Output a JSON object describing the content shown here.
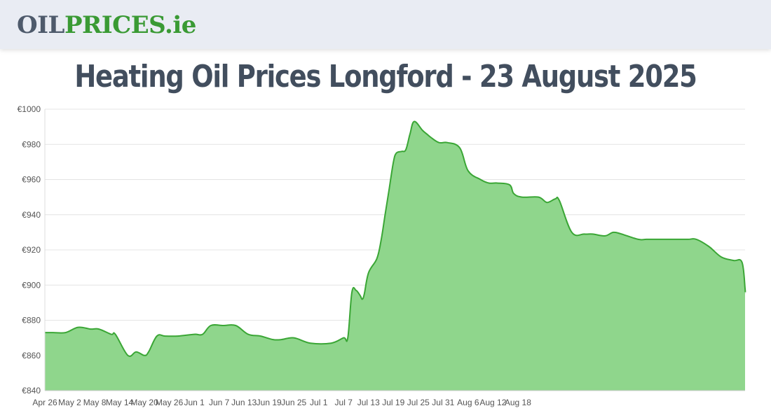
{
  "header": {
    "logo_oil": "OIL",
    "logo_prices": "PRICES",
    "logo_tld": ".ie"
  },
  "page": {
    "title": "Heating Oil Prices Longford - 23 August 2025"
  },
  "colors": {
    "line": "#3aa635",
    "fill": "#8fd68c",
    "grid": "#e4e4e4",
    "axis": "#555555"
  },
  "chart_data": {
    "type": "area",
    "title": "Heating Oil Prices Longford - 23 August 2025",
    "xlabel": "",
    "ylabel": "",
    "ylim": [
      840,
      1000
    ],
    "y_ticks": [
      840,
      860,
      880,
      900,
      920,
      940,
      960,
      980,
      1000
    ],
    "y_tick_labels": [
      "€840",
      "€860",
      "€880",
      "€900",
      "€920",
      "€940",
      "€960",
      "€980",
      "€1000"
    ],
    "x_ticks": [
      "Apr 26",
      "May 2",
      "May 8",
      "May 14",
      "May 20",
      "May 26",
      "Jun 1",
      "Jun 7",
      "Jun 13",
      "Jun 19",
      "Jun 25",
      "Jul 1",
      "Jul 7",
      "Jul 13",
      "Jul 19",
      "Jul 25",
      "Jul 31",
      "Aug 6",
      "Aug 12",
      "Aug 18"
    ],
    "grid": true,
    "series": [
      {
        "name": "Longford",
        "x_days": [
          0,
          2,
          5,
          8,
          11,
          13,
          16,
          17,
          20,
          22,
          24,
          25,
          27,
          29,
          32,
          36,
          38,
          40,
          43,
          46,
          49,
          52,
          55,
          57,
          60,
          64,
          69,
          72,
          73,
          74,
          75,
          76,
          76.5,
          77,
          78,
          80,
          81,
          82,
          83,
          84,
          84.7,
          86,
          87,
          88,
          89,
          91,
          92,
          93,
          95,
          97,
          100,
          102,
          105,
          107,
          109,
          112,
          113,
          115,
          119,
          121,
          123,
          124,
          127,
          130,
          132,
          135,
          137,
          139,
          143,
          145,
          148,
          150,
          152,
          155,
          157,
          160,
          163,
          166,
          168,
          171,
          174
        ],
        "values": [
          873,
          873,
          873,
          876,
          875,
          875,
          872,
          872,
          860,
          862,
          860,
          862,
          871,
          871,
          871,
          872,
          872,
          877,
          877,
          877,
          872,
          871,
          869,
          869,
          870,
          867,
          867,
          870,
          870,
          896,
          897,
          894,
          892,
          895,
          907,
          915,
          925,
          940,
          955,
          970,
          975,
          976,
          977,
          986,
          993,
          988,
          986,
          984,
          981,
          981,
          978,
          965,
          960,
          958,
          958,
          957,
          952,
          950,
          950,
          947,
          949,
          948,
          930,
          929,
          929,
          928,
          930,
          929,
          926,
          926,
          926,
          926,
          926,
          926,
          926,
          922,
          916,
          914,
          913,
          898,
          896
        ]
      }
    ]
  }
}
